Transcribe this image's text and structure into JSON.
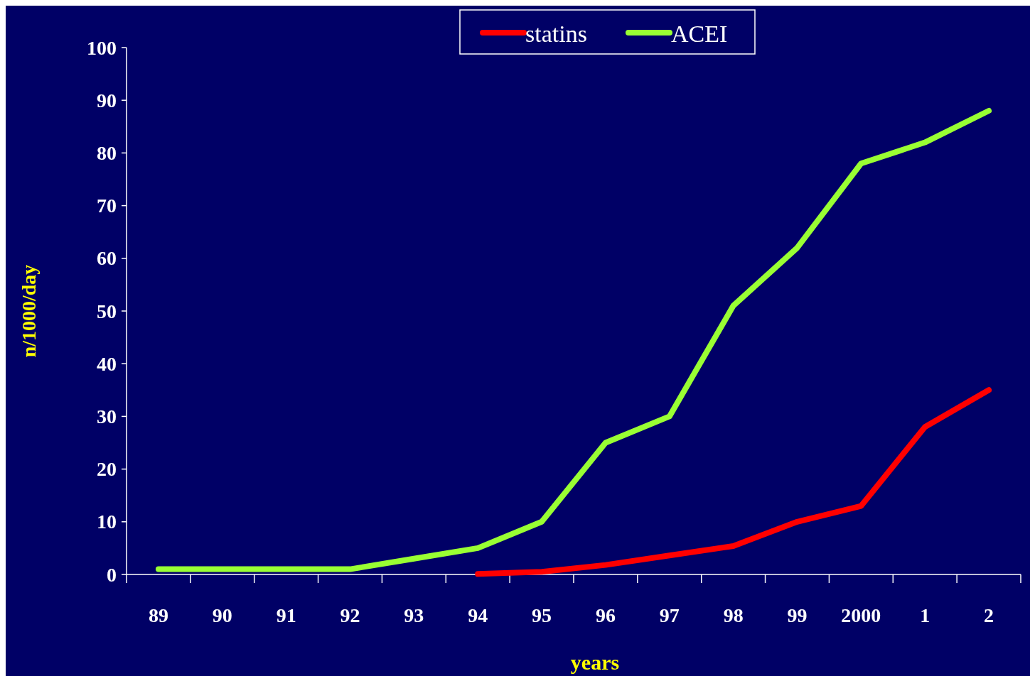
{
  "chart_data": {
    "type": "line",
    "xlabel": "years",
    "ylabel": "n/1000/day",
    "categories": [
      "89",
      "90",
      "91",
      "92",
      "93",
      "94",
      "95",
      "96",
      "97",
      "98",
      "99",
      "2000",
      "1",
      "2"
    ],
    "series": [
      {
        "name": "statins",
        "color": "#ff0000",
        "values": [
          null,
          null,
          null,
          null,
          null,
          0.1,
          0.5,
          1.8,
          3.6,
          5.4,
          10,
          13,
          28,
          35
        ]
      },
      {
        "name": "ACEI",
        "color": "#99ff33",
        "values": [
          1,
          1,
          1,
          1,
          3,
          5,
          10,
          25,
          30,
          51,
          62,
          78,
          82,
          88
        ]
      }
    ],
    "ylim": [
      0,
      100
    ],
    "yticks": [
      0,
      10,
      20,
      30,
      40,
      50,
      60,
      70,
      80,
      90,
      100
    ],
    "grid": false,
    "legend": "top",
    "marker": "none",
    "line_style": "solid"
  }
}
